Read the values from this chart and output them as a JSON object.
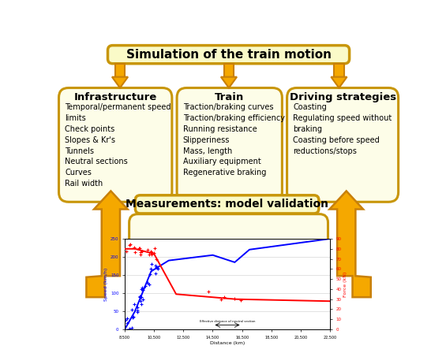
{
  "title": "Simulation of the train motion",
  "title_bg": "#FAFAC8",
  "title_border": "#C8960A",
  "box_bg": "#FDFDE8",
  "box_border": "#C8960A",
  "arrow_color": "#F5A800",
  "arrow_border": "#C8800A",
  "boxes": [
    {
      "header": "Infrastructure",
      "items": [
        "Temporal/permanent speed",
        "limits",
        "Check points",
        "Slopes & Kr's",
        "Tunnels",
        "Neutral sections",
        "Curves",
        "Rail width"
      ]
    },
    {
      "header": "Train",
      "items": [
        "Traction/braking curves",
        "Traction/braking efficiency",
        "Running resistance",
        "Slipperiness",
        "Mass, length",
        "Auxiliary equipment",
        "Regenerative braking"
      ]
    },
    {
      "header": "Driving strategies",
      "items": [
        "Coasting",
        "Regulating speed without",
        "braking",
        "Coasting before speed",
        "reductions/stops"
      ]
    }
  ],
  "measurement_title": "Measurements: model validation",
  "background_color": "#FFFFFF",
  "fig_w": 5.65,
  "fig_h": 4.48,
  "dpi": 100
}
